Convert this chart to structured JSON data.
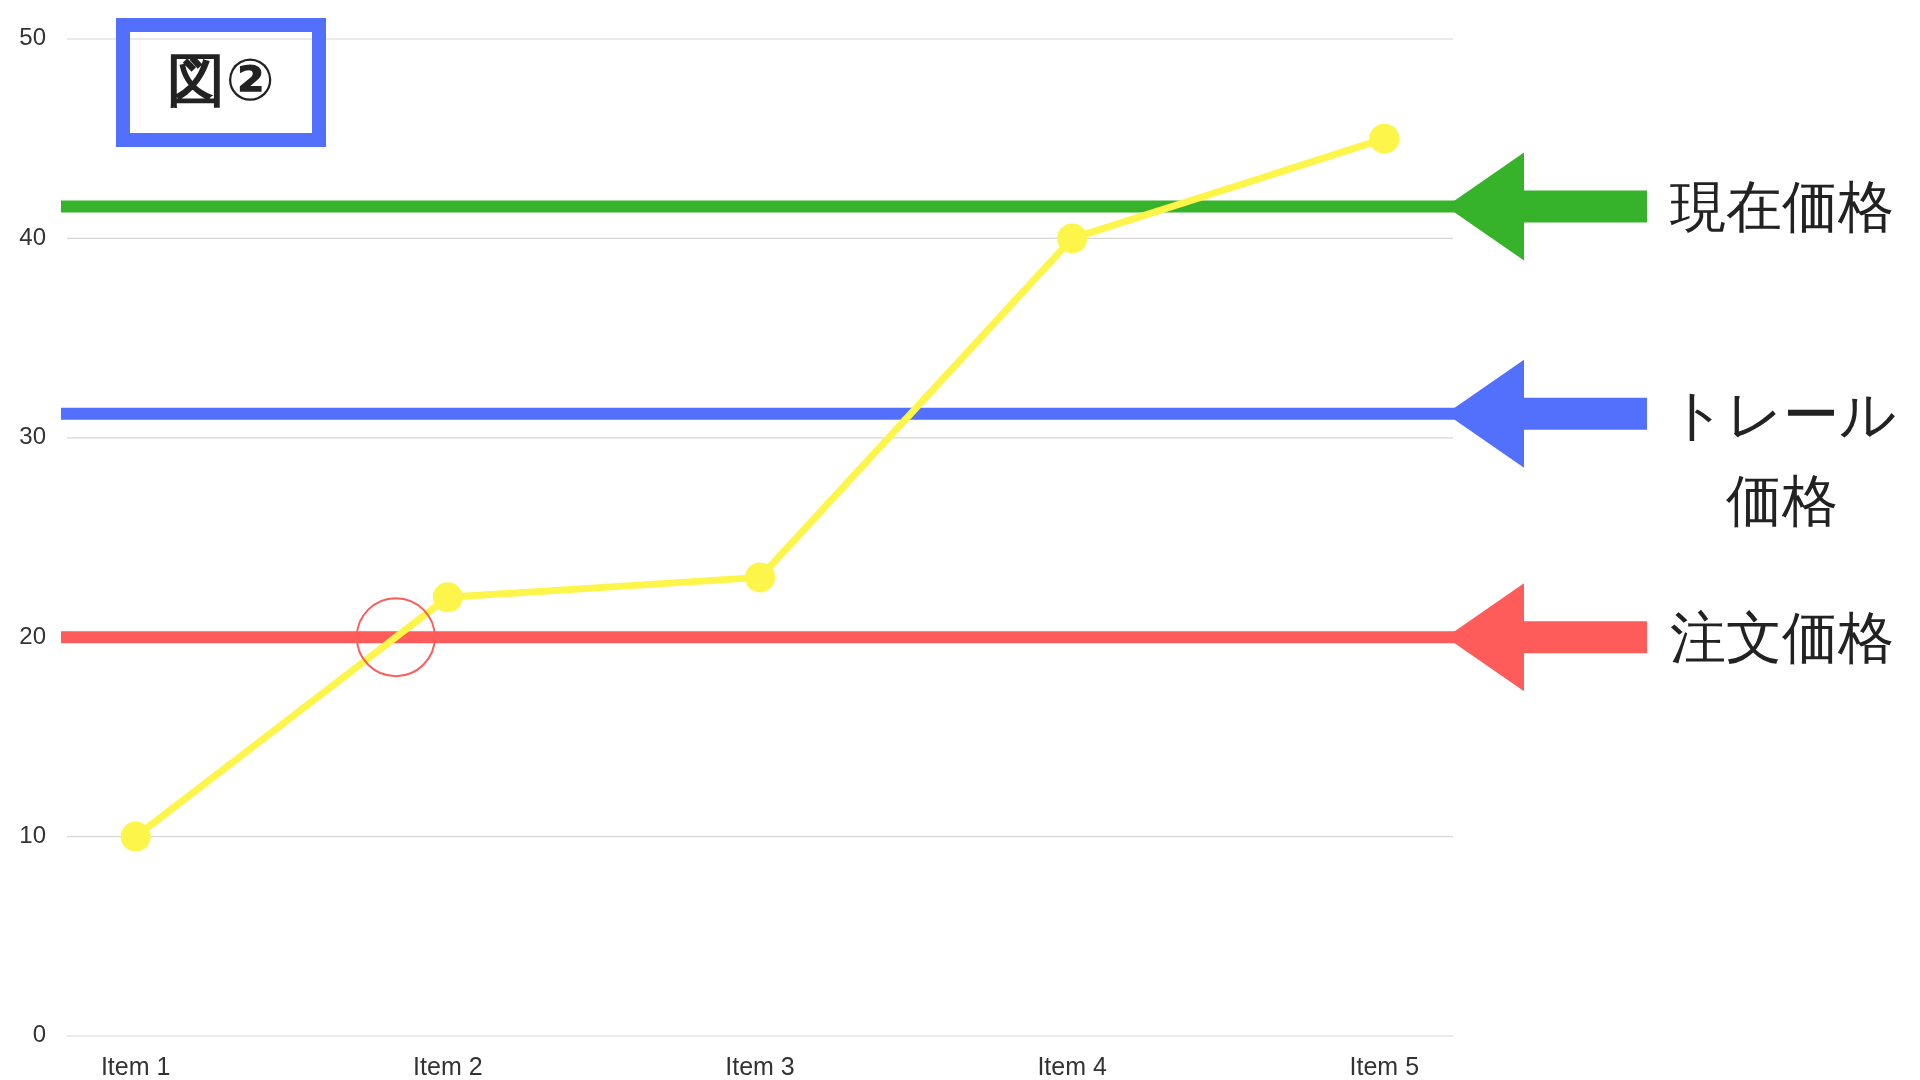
{
  "chart_data": {
    "type": "line",
    "title": "図②",
    "categories": [
      "Item 1",
      "Item 2",
      "Item 3",
      "Item 4",
      "Item 5"
    ],
    "series": [
      {
        "color": "#fdf54a",
        "values": [
          10,
          22,
          23,
          40,
          45
        ]
      }
    ],
    "ylim": [
      0,
      50
    ],
    "yticks": [
      0,
      10,
      20,
      30,
      40,
      50
    ],
    "grid": "y",
    "marker": "circle",
    "line_style": "solid",
    "ref_lines": [
      {
        "axis": "y",
        "value": 41.6,
        "label": "現在価格",
        "color": "#36b32a"
      },
      {
        "axis": "y",
        "value": 31.2,
        "label": "トレール価格",
        "color": "#5270fb"
      },
      {
        "axis": "y",
        "value": 20,
        "label": "注文価格",
        "color": "#fe5b5b"
      }
    ]
  }
}
